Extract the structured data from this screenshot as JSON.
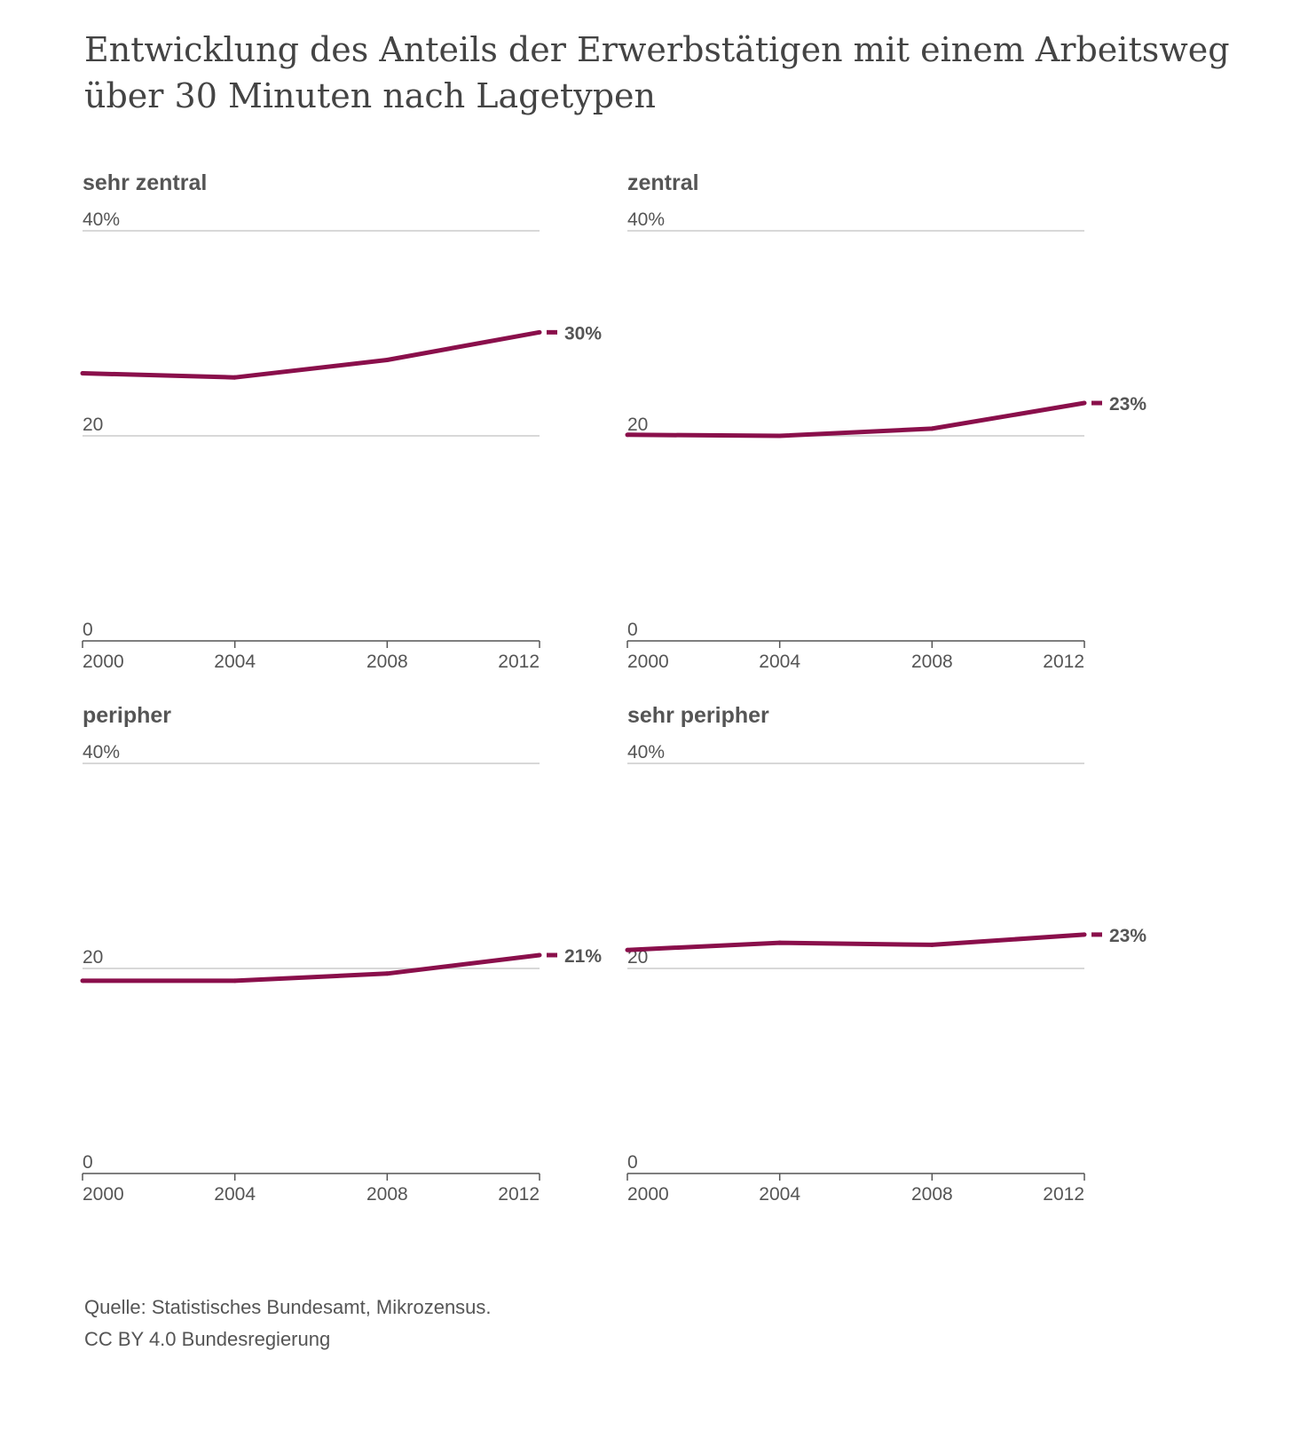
{
  "title": "Entwicklung des Anteils der Erwerbstätigen mit einem Arbeitsweg über 30 Minuten nach Lagetypen",
  "colors": {
    "line": "#8a0f4b",
    "grid": "#cccccc",
    "axis": "#555555",
    "text": "#555555"
  },
  "chart_data": [
    {
      "type": "line",
      "title": "sehr zentral",
      "x": [
        2000,
        2004,
        2008,
        2012
      ],
      "x_tick_labels": [
        "2000",
        "2004",
        "2008",
        "2012"
      ],
      "y_tick_labels": [
        "0",
        "20",
        "40%"
      ],
      "y_ticks": [
        0,
        20,
        40
      ],
      "ylim": [
        0,
        40
      ],
      "grid": true,
      "series": [
        {
          "values": [
            26.1,
            25.7,
            27.4,
            30.1
          ]
        }
      ],
      "end_label": "30%"
    },
    {
      "type": "line",
      "title": "zentral",
      "x": [
        2000,
        2004,
        2008,
        2012
      ],
      "x_tick_labels": [
        "2000",
        "2004",
        "2008",
        "2012"
      ],
      "y_tick_labels": [
        "0",
        "20",
        "40%"
      ],
      "y_ticks": [
        0,
        20,
        40
      ],
      "ylim": [
        0,
        40
      ],
      "grid": true,
      "series": [
        {
          "values": [
            20.1,
            20.0,
            20.7,
            23.2
          ]
        }
      ],
      "end_label": "23%"
    },
    {
      "type": "line",
      "title": "peripher",
      "x": [
        2000,
        2004,
        2008,
        2012
      ],
      "x_tick_labels": [
        "2000",
        "2004",
        "2008",
        "2012"
      ],
      "y_tick_labels": [
        "0",
        "20",
        "40%"
      ],
      "y_ticks": [
        0,
        20,
        40
      ],
      "ylim": [
        0,
        40
      ],
      "grid": true,
      "series": [
        {
          "values": [
            18.8,
            18.8,
            19.5,
            21.3
          ]
        }
      ],
      "end_label": "21%"
    },
    {
      "type": "line",
      "title": "sehr peripher",
      "x": [
        2000,
        2004,
        2008,
        2012
      ],
      "x_tick_labels": [
        "2000",
        "2004",
        "2008",
        "2012"
      ],
      "y_tick_labels": [
        "0",
        "20",
        "40%"
      ],
      "y_ticks": [
        0,
        20,
        40
      ],
      "ylim": [
        0,
        40
      ],
      "grid": true,
      "series": [
        {
          "values": [
            21.8,
            22.5,
            22.3,
            23.3
          ]
        }
      ],
      "end_label": "23%"
    }
  ],
  "footer": {
    "source": "Quelle: Statistisches Bundesamt, Mikrozensus.",
    "license": "CC BY 4.0 Bundesregierung"
  }
}
